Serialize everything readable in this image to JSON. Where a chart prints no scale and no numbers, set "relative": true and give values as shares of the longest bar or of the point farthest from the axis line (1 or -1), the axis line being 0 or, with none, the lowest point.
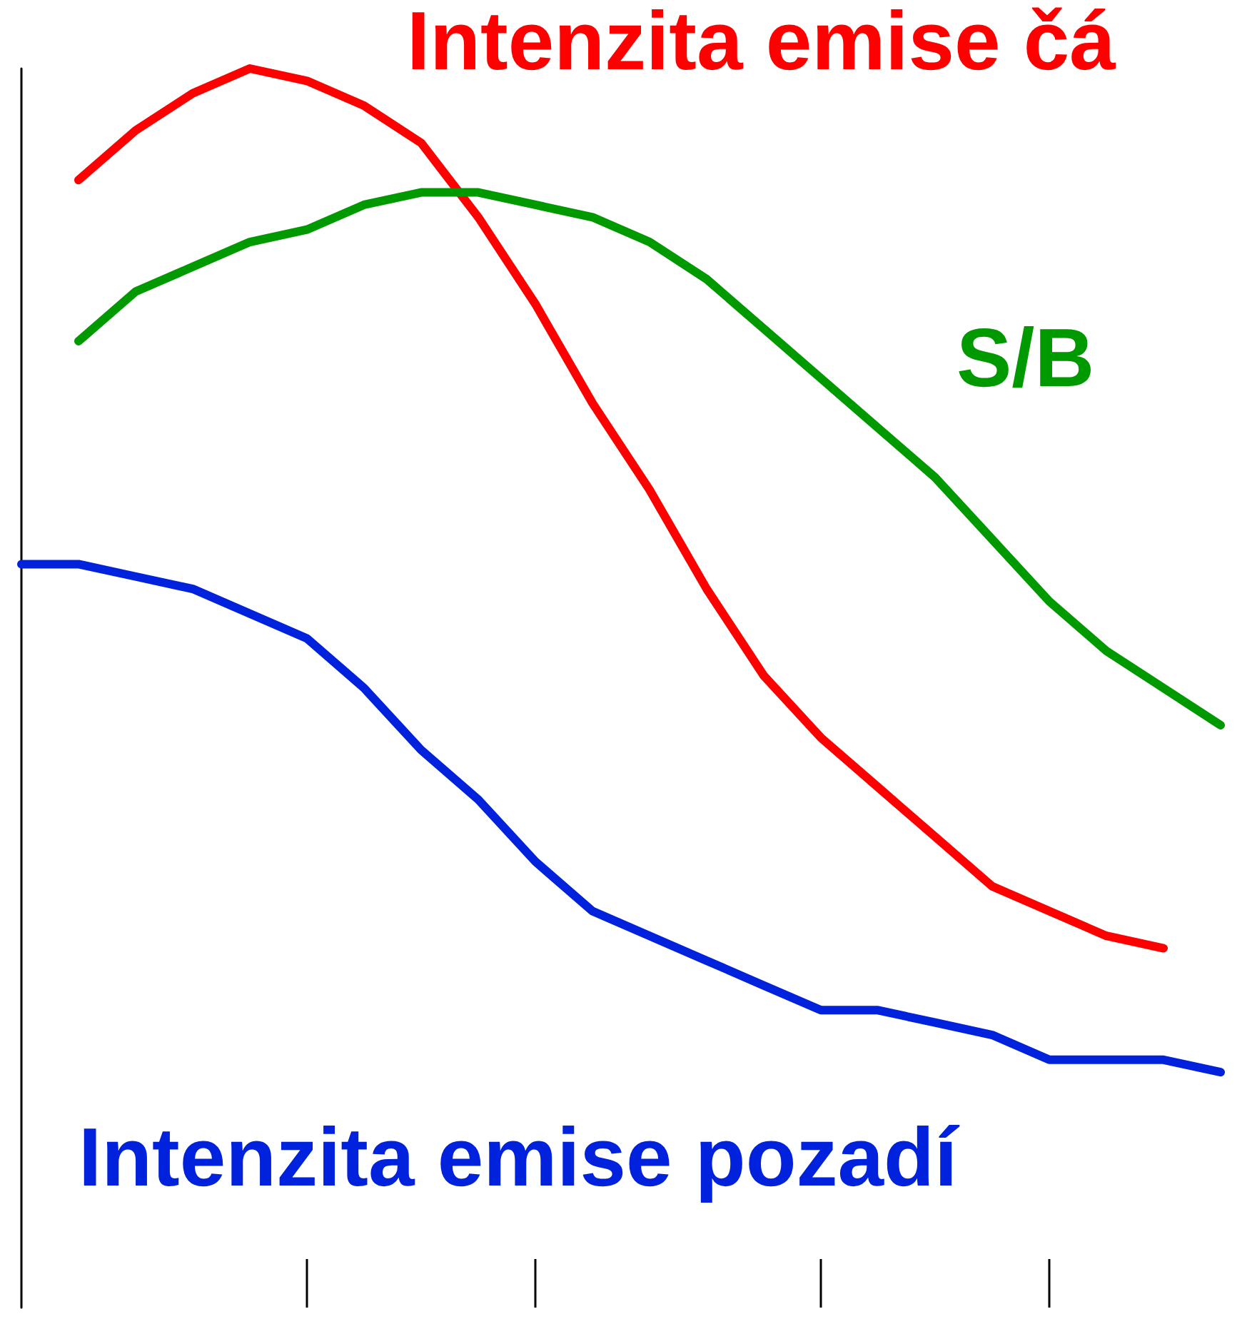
{
  "chart_data": {
    "type": "line",
    "relative": true,
    "categories": [
      null,
      null,
      null,
      null,
      null,
      null,
      null,
      null,
      null,
      null,
      null,
      null,
      null,
      null,
      null,
      null,
      null,
      null,
      null,
      null,
      null,
      null
    ],
    "marker": "none",
    "line_style": "solid",
    "legend": false,
    "grid": false,
    "series": [
      {
        "name": "Intenzita emise čá",
        "color": "#ff0000",
        "values": [
          null,
          0.91,
          0.95,
          0.98,
          1.0,
          0.99,
          0.97,
          0.94,
          0.88,
          0.81,
          0.73,
          0.66,
          0.58,
          0.51,
          0.46,
          0.42,
          0.38,
          0.34,
          0.32,
          0.3,
          0.29,
          null
        ]
      },
      {
        "name": "S/B",
        "color": "#009900",
        "values": [
          null,
          0.78,
          0.82,
          0.84,
          0.86,
          0.87,
          0.89,
          0.9,
          0.9,
          0.89,
          0.88,
          0.86,
          0.83,
          0.79,
          0.75,
          0.71,
          0.67,
          0.62,
          0.57,
          0.53,
          0.5,
          0.47
        ]
      },
      {
        "name": "Intenzita emise pozadí",
        "color": "#0022dd",
        "values": [
          0.6,
          0.6,
          0.59,
          0.58,
          0.56,
          0.54,
          0.5,
          0.45,
          0.41,
          0.36,
          0.32,
          0.3,
          0.28,
          0.26,
          0.24,
          0.24,
          0.23,
          0.22,
          0.2,
          0.2,
          0.2,
          0.19
        ]
      }
    ]
  }
}
